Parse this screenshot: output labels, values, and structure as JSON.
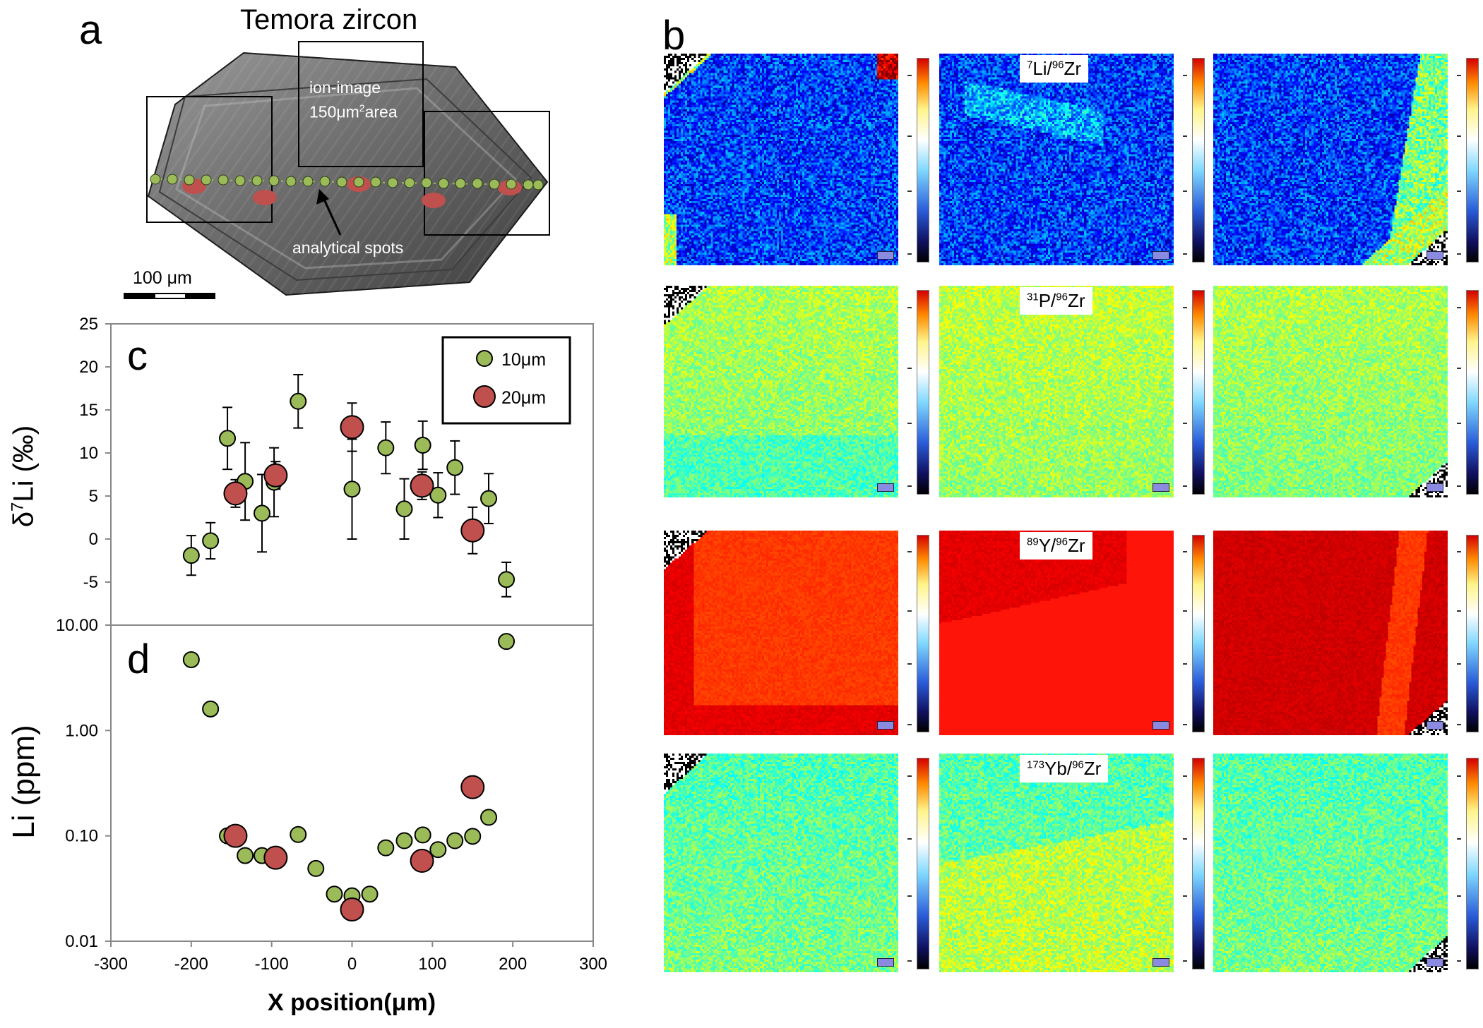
{
  "panel_a": {
    "letter": "a",
    "title": "Temora zircon",
    "ion_image_line1": "ion-image",
    "ion_image_line2_prefix": "150",
    "ion_image_line2_unit": "μm",
    "ion_image_line2_sup": "2",
    "ion_image_line2_suffix": "area",
    "spots_label": "analytical spots",
    "scale_label": "100 μm"
  },
  "panel_b": {
    "letter": "b",
    "rows": [
      {
        "label_sup": "7",
        "label_el": "Li/",
        "label_sup2": "96",
        "label_el2": "Zr"
      },
      {
        "label_sup": "31",
        "label_el": "P/",
        "label_sup2": "96",
        "label_el2": "Zr"
      },
      {
        "label_sup": "89",
        "label_el": "Y/",
        "label_sup2": "96",
        "label_el2": "Zr"
      },
      {
        "label_sup": "173",
        "label_el": "Yb/",
        "label_sup2": "96",
        "label_el2": "Zr"
      }
    ]
  },
  "chart_data": [
    {
      "type": "scatter",
      "panel_letter": "c",
      "ylabel_prefix": "δ",
      "ylabel_sup": "7",
      "ylabel_main": "Li (‰)",
      "ylim": [
        -10,
        25
      ],
      "yticks": [
        "25",
        "20",
        "15",
        "10",
        "5",
        "0",
        "-5"
      ],
      "ytick_values": [
        25,
        20,
        15,
        10,
        5,
        0,
        -5
      ],
      "xlim": [
        -300,
        300
      ],
      "legend": [
        {
          "name": "10μm"
        },
        {
          "name": "20μm"
        }
      ],
      "legend_position": "top-right",
      "series": [
        {
          "name": "10μm",
          "color": "#9bbb59",
          "x": [
            -200,
            -176,
            -155,
            -133,
            -112,
            -97,
            -67,
            0,
            42,
            65,
            88,
            107,
            128,
            170,
            192
          ],
          "y": [
            -1.9,
            -0.2,
            11.7,
            6.7,
            3.0,
            6.6,
            16.0,
            5.8,
            10.6,
            3.5,
            10.9,
            5.1,
            8.3,
            4.7,
            -4.7
          ],
          "err": [
            2.3,
            2.1,
            3.6,
            4.5,
            4.5,
            4.0,
            3.1,
            5.8,
            3.0,
            3.5,
            2.8,
            2.6,
            3.1,
            2.9,
            2.0
          ]
        },
        {
          "name": "20μm",
          "color": "#c0504d",
          "x": [
            -145,
            -95,
            0,
            87,
            150
          ],
          "y": [
            5.3,
            7.4,
            13.0,
            6.2,
            1.0
          ],
          "err": [
            1.6,
            1.6,
            2.8,
            1.6,
            2.7
          ]
        }
      ]
    },
    {
      "type": "scatter",
      "panel_letter": "d",
      "ylabel": "Li (ppm)",
      "yscale": "log",
      "ylim": [
        0.01,
        10
      ],
      "yticks": [
        "10.00",
        "1.00",
        "0.10",
        "0.01"
      ],
      "ytick_values": [
        10,
        1,
        0.1,
        0.01
      ],
      "xlim": [
        -300,
        300
      ],
      "xticks": [
        "-300",
        "-200",
        "-100",
        "0",
        "100",
        "200",
        "300"
      ],
      "xtick_values": [
        -300,
        -200,
        -100,
        0,
        100,
        200,
        300
      ],
      "xlabel_prefix": "X position(",
      "xlabel_unit": "μm",
      "xlabel_suffix": ")",
      "series": [
        {
          "name": "10μm",
          "color": "#9bbb59",
          "x": [
            -200,
            -176,
            -155,
            -133,
            -112,
            -97,
            -67,
            -45,
            -22,
            0,
            22,
            42,
            65,
            88,
            107,
            128,
            150,
            170,
            192
          ],
          "y": [
            4.7,
            1.6,
            0.1,
            0.065,
            0.065,
            0.063,
            0.103,
            0.049,
            0.028,
            0.027,
            0.028,
            0.077,
            0.09,
            0.102,
            0.074,
            0.09,
            0.099,
            0.15,
            7.0
          ]
        },
        {
          "name": "20μm",
          "color": "#c0504d",
          "x": [
            -145,
            -95,
            0,
            87,
            150
          ],
          "y": [
            0.1,
            0.062,
            0.02,
            0.058,
            0.29
          ]
        }
      ]
    }
  ]
}
